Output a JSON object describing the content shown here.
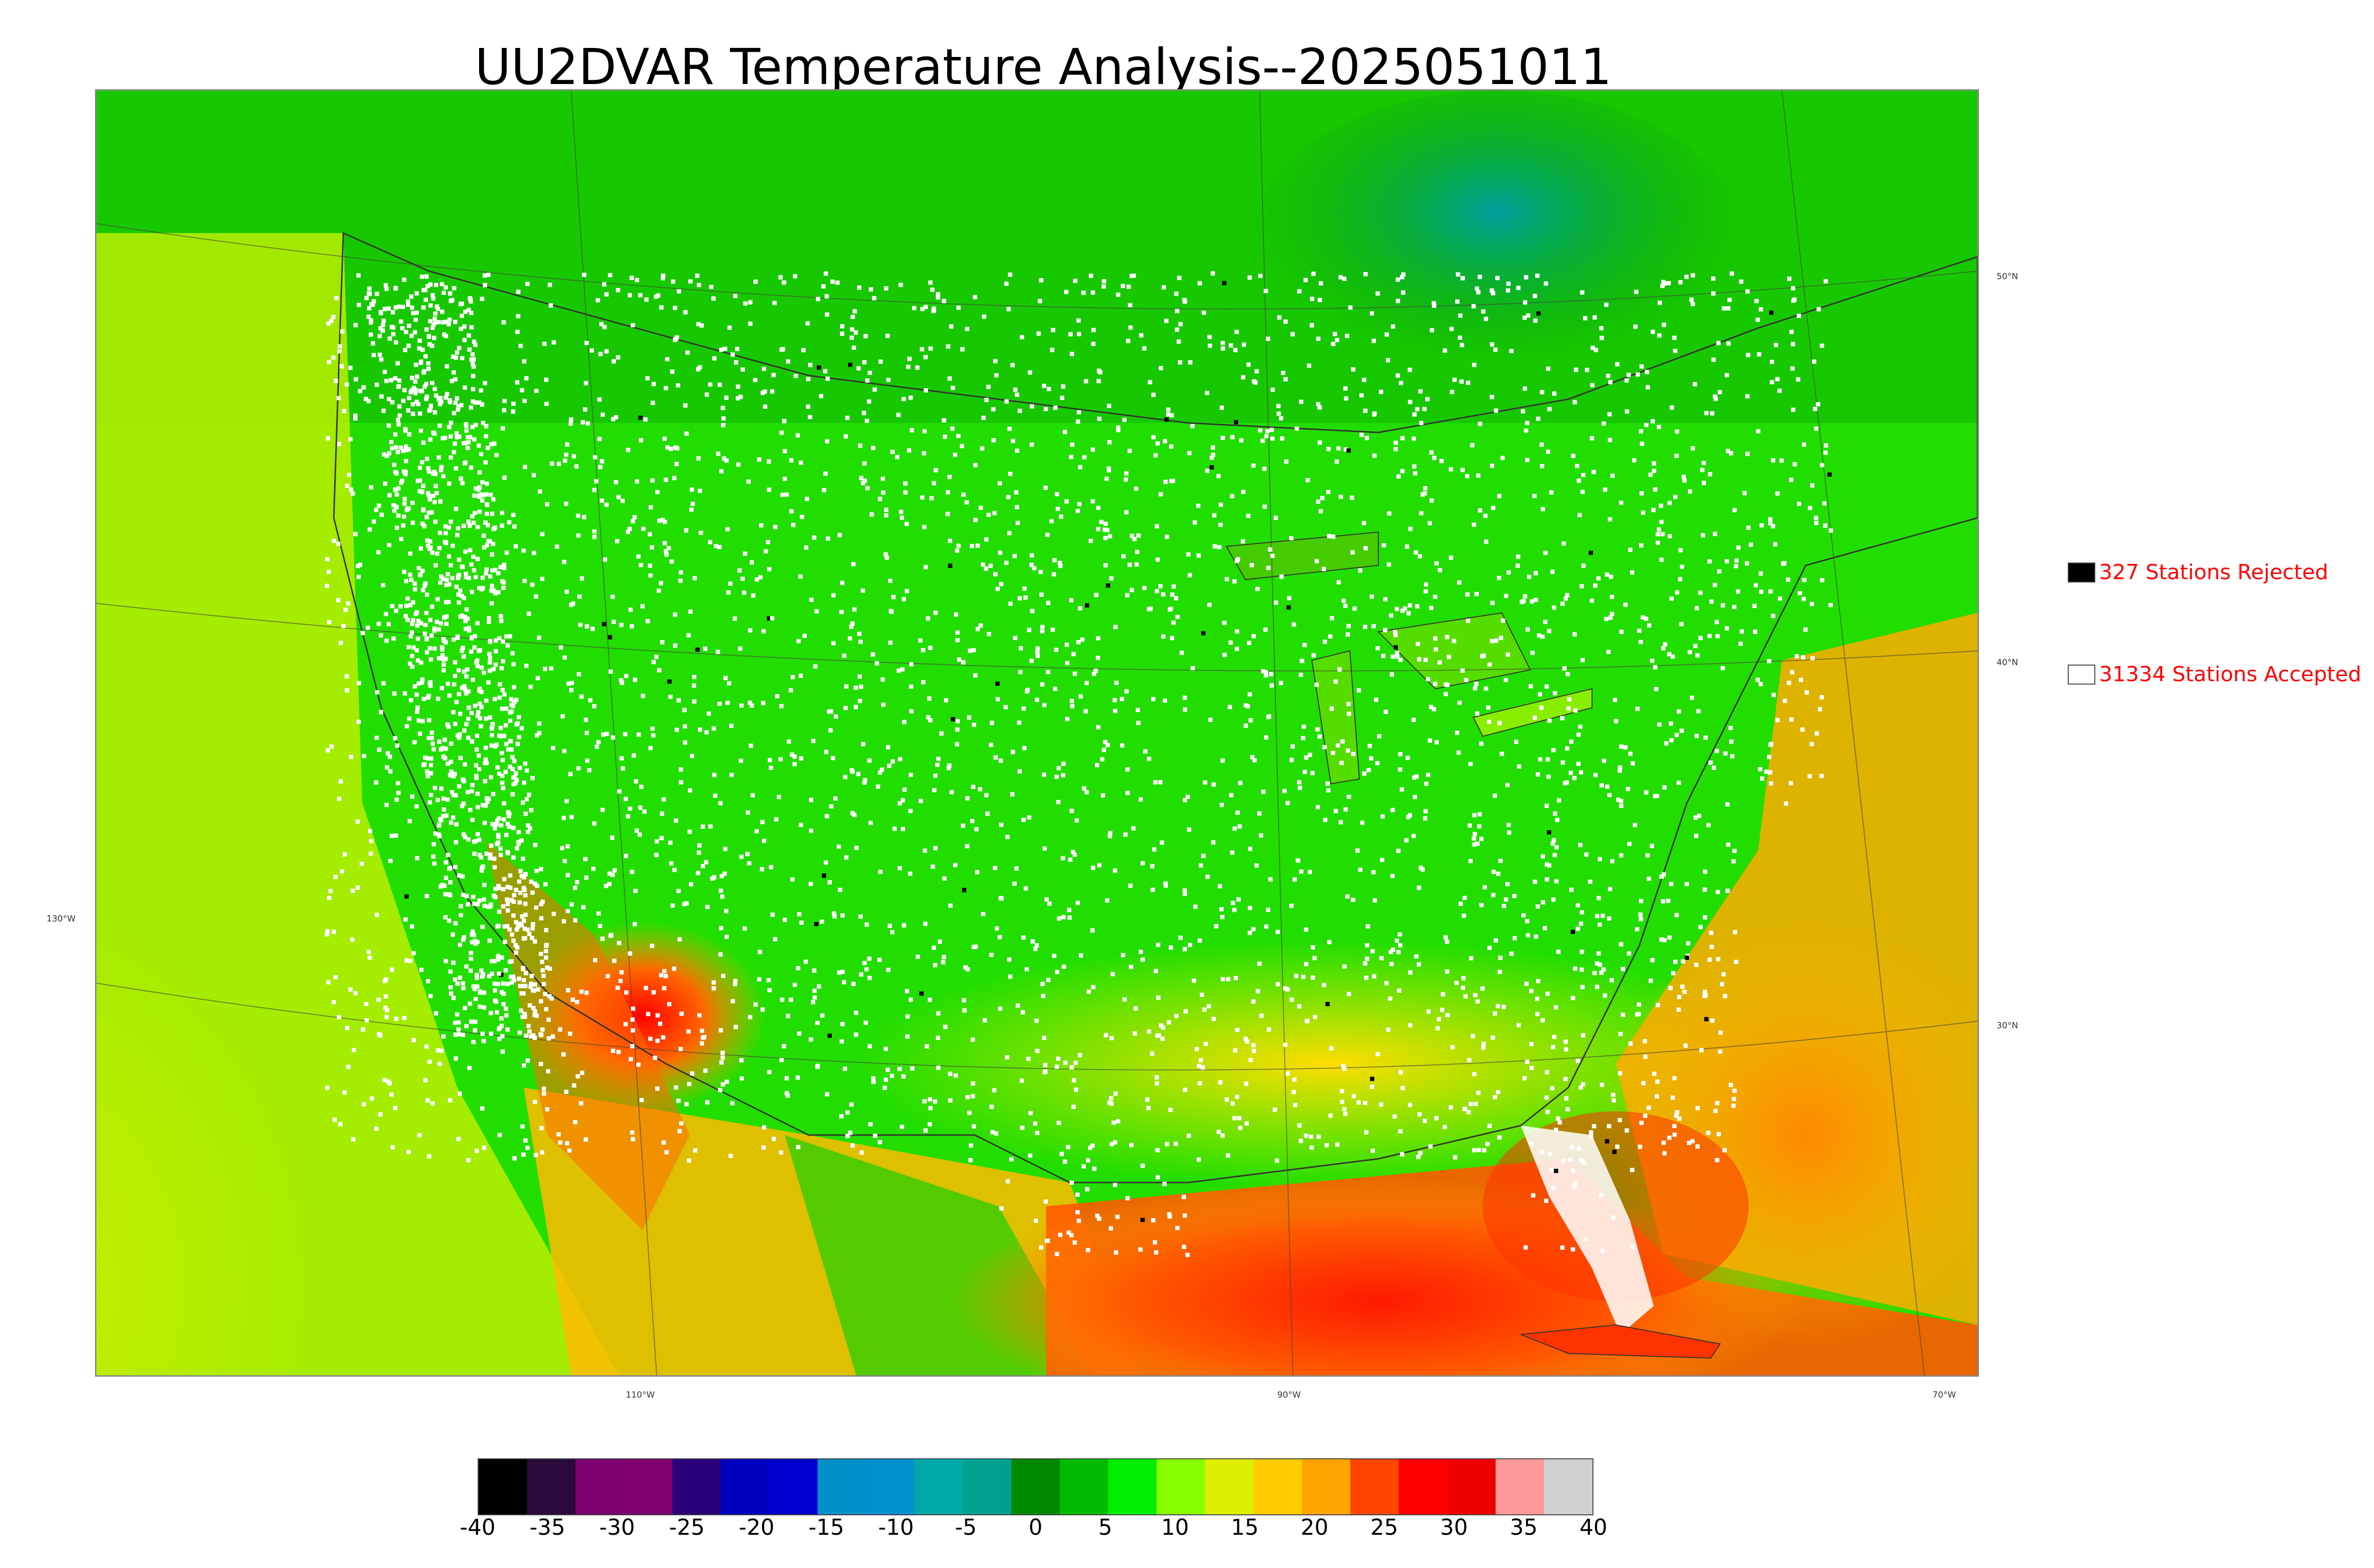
{
  "title": "UU2DVAR Temperature Analysis--2025051011",
  "map": {
    "lon_labels": [
      "110°W",
      "90°W",
      "70°W"
    ],
    "lat_labels_right": [
      "50°N",
      "40°N",
      "30°N"
    ],
    "lat_labels_left": [
      "130°W"
    ]
  },
  "legend": {
    "rejected": "327 Stations Rejected",
    "accepted": "31334 Stations Accepted"
  },
  "colorbar": {
    "ticks": [
      "-40",
      "-35",
      "-30",
      "-25",
      "-20",
      "-15",
      "-10",
      "-5",
      "0",
      "5",
      "10",
      "15",
      "20",
      "25",
      "30",
      "35",
      "40"
    ],
    "range": [
      -40,
      40
    ],
    "colors": [
      "#000000",
      "#2a0a3a",
      "#7a0070",
      "#800070",
      "#2a007a",
      "#0000c0",
      "#0000d0",
      "#0090c8",
      "#0090d0",
      "#00a8a8",
      "#00a090",
      "#008800",
      "#00bb00",
      "#00ee00",
      "#88ff00",
      "#ddee00",
      "#ffcc00",
      "#ffa500",
      "#ff4500",
      "#ff0000",
      "#ee0000",
      "#ff9999",
      "#d0d0d0"
    ]
  },
  "colors": {
    "cold": "#009900",
    "mild": "#33ee00",
    "warm": "#ddee00",
    "hot": "#ff3300",
    "station_accepted": "#ffffff",
    "station_rejected": "#000000",
    "label_red": "#ff0000"
  }
}
